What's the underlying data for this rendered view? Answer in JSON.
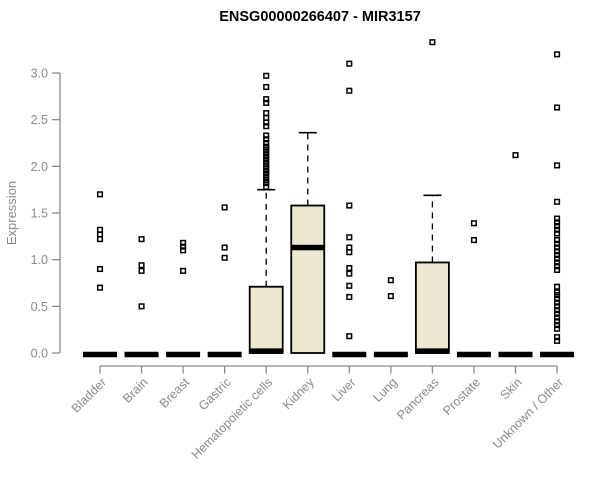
{
  "chart_data": {
    "type": "boxplot",
    "title": "ENSG00000266407 - MIR3157",
    "ylabel": "Expression",
    "xlabel": "",
    "ylim": [
      0.0,
      3.0
    ],
    "yticks": [
      0.0,
      0.5,
      1.0,
      1.5,
      2.0,
      2.5,
      3.0
    ],
    "grid": false,
    "legend": "none",
    "colors": {
      "box_fill": "#ece8d1",
      "box_stroke": "#000000",
      "median": "#000000",
      "outlier": "#000000",
      "axis": "#8a8a8a",
      "tick_label": "#8a8a8a",
      "title": "#000000"
    },
    "categories": [
      {
        "label": "Bladder",
        "whisker_low": 0,
        "q1": 0,
        "median": 0,
        "q3": 0,
        "whisker_high": 0,
        "outliers": [
          0.7,
          0.9,
          1.22,
          1.27,
          1.32,
          1.7
        ]
      },
      {
        "label": "Brain",
        "whisker_low": 0,
        "q1": 0,
        "median": 0,
        "q3": 0,
        "whisker_high": 0,
        "outliers": [
          0.5,
          0.88,
          0.94,
          1.22
        ]
      },
      {
        "label": "Breast",
        "whisker_low": 0,
        "q1": 0,
        "median": 0,
        "q3": 0,
        "whisker_high": 0,
        "outliers": [
          0.88,
          1.1,
          1.14,
          1.18
        ]
      },
      {
        "label": "Gastric",
        "whisker_low": 0,
        "q1": 0,
        "median": 0,
        "q3": 0,
        "whisker_high": 0,
        "outliers": [
          1.02,
          1.13,
          1.56
        ]
      },
      {
        "label": "Hematopoietic cells",
        "whisker_low": 0,
        "q1": 0,
        "median": 0.02,
        "q3": 0.71,
        "whisker_high": 1.75,
        "outliers": [
          1.78,
          1.82,
          1.85,
          1.88,
          1.91,
          1.94,
          1.97,
          2.0,
          2.03,
          2.06,
          2.09,
          2.12,
          2.15,
          2.18,
          2.21,
          2.25,
          2.29,
          2.33,
          2.43,
          2.47,
          2.52,
          2.57,
          2.68,
          2.72,
          2.85,
          2.97
        ]
      },
      {
        "label": "Kidney",
        "whisker_low": 0,
        "q1": 0,
        "median": 1.13,
        "q3": 1.58,
        "whisker_high": 2.36,
        "outliers": []
      },
      {
        "label": "Liver",
        "whisker_low": 0,
        "q1": 0,
        "median": 0,
        "q3": 0,
        "whisker_high": 0,
        "outliers": [
          0.18,
          0.6,
          0.72,
          0.85,
          0.91,
          1.08,
          1.13,
          1.24,
          1.58,
          2.81,
          3.1
        ]
      },
      {
        "label": "Lung",
        "whisker_low": 0,
        "q1": 0,
        "median": 0,
        "q3": 0,
        "whisker_high": 0,
        "outliers": [
          0.61,
          0.78
        ]
      },
      {
        "label": "Pancreas",
        "whisker_low": 0,
        "q1": 0,
        "median": 0.02,
        "q3": 0.97,
        "whisker_high": 1.69,
        "outliers": [
          3.33
        ]
      },
      {
        "label": "Prostate",
        "whisker_low": 0,
        "q1": 0,
        "median": 0,
        "q3": 0,
        "whisker_high": 0,
        "outliers": [
          1.21,
          1.39
        ]
      },
      {
        "label": "Skin",
        "whisker_low": 0,
        "q1": 0,
        "median": 0,
        "q3": 0,
        "whisker_high": 0,
        "outliers": [
          2.12
        ]
      },
      {
        "label": "Unknown / Other",
        "whisker_low": 0,
        "q1": 0,
        "median": 0,
        "q3": 0,
        "whisker_high": 0,
        "outliers": [
          0.13,
          0.17,
          0.26,
          0.3,
          0.34,
          0.38,
          0.42,
          0.46,
          0.5,
          0.54,
          0.58,
          0.62,
          0.65,
          0.71,
          0.89,
          0.93,
          0.97,
          1.01,
          1.05,
          1.09,
          1.13,
          1.17,
          1.21,
          1.28,
          1.32,
          1.36,
          1.4,
          1.44,
          1.62,
          2.01,
          2.63,
          3.2
        ]
      }
    ]
  }
}
